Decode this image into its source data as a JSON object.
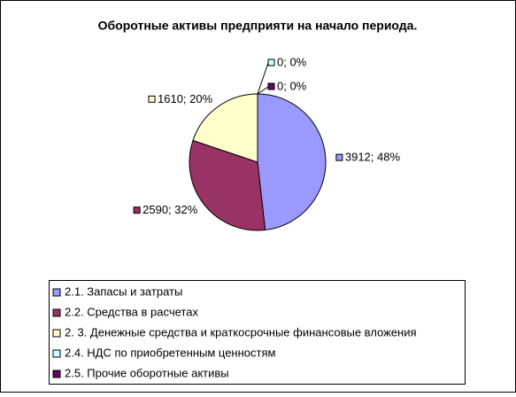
{
  "chart_data": {
    "type": "pie",
    "title": "Оборотные активы предприяти на начало периода.",
    "categories": [
      "2.1. Запасы и затраты",
      "2.2. Средства в расчетах",
      "2. 3. Денежные средства и краткосрочные финансовые вложения",
      "2.4. НДС по приобретенным ценностям",
      "2.5. Прочие оборотные активы"
    ],
    "values": [
      3912,
      2590,
      1610,
      0,
      0
    ],
    "value_labels": [
      "3912; 48%",
      "2590; 32%",
      "1610; 20%",
      "0; 0%",
      "0; 0%"
    ],
    "colors": [
      "#9999ff",
      "#993366",
      "#ffffcc",
      "#ccffff",
      "#660066"
    ],
    "legend": "bottom"
  }
}
